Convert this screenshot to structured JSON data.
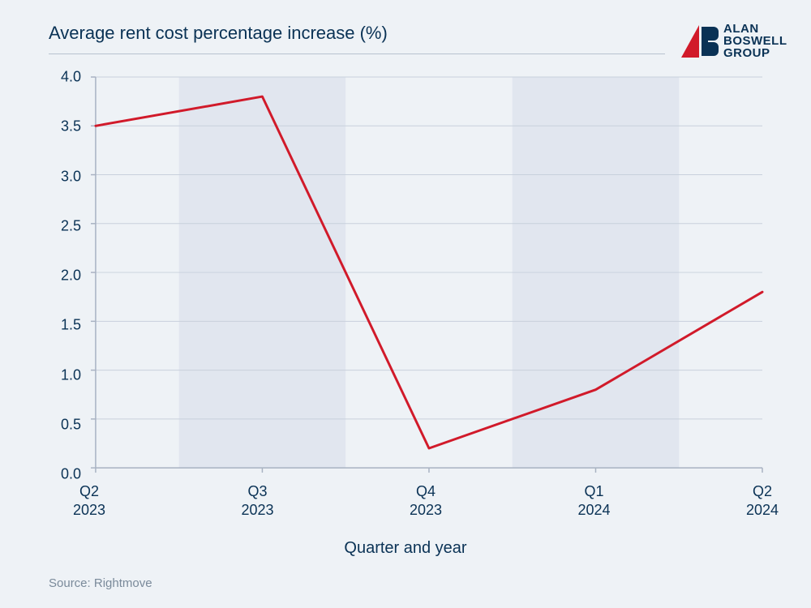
{
  "title": "Average rent cost percentage increase (%)",
  "logo": {
    "line1": "ALAN",
    "line2": "BOSWELL",
    "line3": "GROUP"
  },
  "source": "Source: Rightmove",
  "x_axis_title": "Quarter and year",
  "chart": {
    "type": "line",
    "ylim": [
      0.0,
      4.0
    ],
    "ytick_step": 0.5,
    "y_ticks": [
      "0.0",
      "0.5",
      "1.0",
      "1.5",
      "2.0",
      "2.5",
      "3.0",
      "3.5",
      "4.0"
    ],
    "x_labels": [
      "Q2\n2023",
      "Q3\n2023",
      "Q4\n2023",
      "Q1\n2024",
      "Q2\n2024"
    ],
    "values": [
      3.5,
      3.8,
      0.2,
      0.8,
      1.8
    ],
    "line_color": "#d11a2a",
    "line_width": 3,
    "background_color": "#eef2f6",
    "band_color": "#e1e6ef",
    "grid_color": "#c8d0dc",
    "axis_color": "#a8b2c2",
    "text_color": "#0a3255",
    "title_fontsize": 22,
    "tick_fontsize": 18,
    "axis_title_fontsize": 20
  }
}
